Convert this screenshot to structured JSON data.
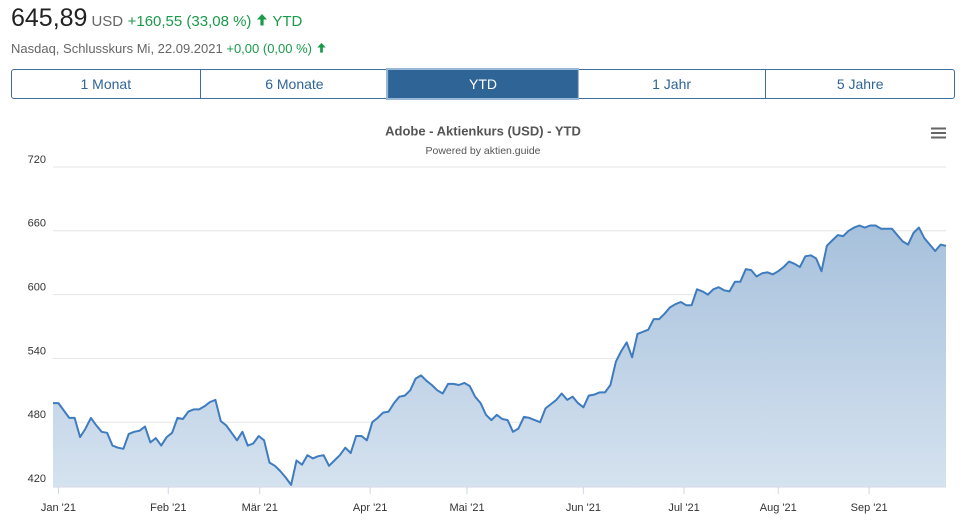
{
  "header": {
    "price": "645,89",
    "currency": "USD",
    "change": "+160,55 (33,08 %)",
    "period": "YTD",
    "exchange_info": "Nasdaq, Schlusskurs Mi, 22.09.2021",
    "day_change": "+0,00 (0,00 %)"
  },
  "tabs": [
    "1 Monat",
    "6 Monate",
    "YTD",
    "1 Jahr",
    "5 Jahre"
  ],
  "active_tab": 2,
  "chart_data": {
    "type": "area",
    "title": "Adobe - Aktienkurs (USD) - YTD",
    "subtitle": "Powered by aktien.guide",
    "color": "#3f7cbf",
    "grid": true,
    "values": [
      498,
      498,
      491,
      484,
      484,
      466,
      474,
      484,
      477,
      471,
      470,
      458,
      456,
      455,
      469,
      471,
      472,
      476,
      461,
      465,
      458,
      466,
      470,
      484,
      483,
      490,
      492,
      492,
      495,
      499,
      501,
      481,
      477,
      470,
      463,
      471,
      458,
      460,
      467,
      463,
      442,
      439,
      434,
      428,
      421,
      444,
      440,
      449,
      446,
      448,
      449,
      439,
      444,
      449,
      456,
      451,
      467,
      467,
      463,
      480,
      484,
      489,
      490,
      498,
      504,
      505,
      510,
      521,
      524,
      519,
      515,
      510,
      507,
      516,
      516,
      515,
      517,
      514,
      504,
      498,
      487,
      482,
      487,
      483,
      482,
      471,
      474,
      485,
      484,
      482,
      480,
      493,
      497,
      501,
      507,
      501,
      504,
      498,
      494,
      505,
      506,
      508,
      508,
      515,
      537,
      547,
      555,
      541,
      563,
      565,
      567,
      577,
      577,
      582,
      588,
      591,
      593,
      590,
      590,
      605,
      603,
      600,
      605,
      607,
      604,
      603,
      612,
      612,
      624,
      623,
      617,
      620,
      621,
      619,
      622,
      626,
      631,
      629,
      626,
      636,
      637,
      634,
      622,
      646,
      651,
      656,
      655,
      660,
      663,
      665,
      663,
      665,
      665,
      662,
      662,
      662,
      656,
      650,
      647,
      658,
      663,
      653,
      647,
      641,
      647,
      645.89
    ],
    "xlim": [
      0,
      165
    ],
    "xticks": [
      {
        "value": 1,
        "label": "Jan '21"
      },
      {
        "value": 21.3,
        "label": "Feb '21"
      },
      {
        "value": 38.2,
        "label": "Mär '21"
      },
      {
        "value": 58.6,
        "label": "Apr '21"
      },
      {
        "value": 76.5,
        "label": "Mai '21"
      },
      {
        "value": 98,
        "label": "Jun '21"
      },
      {
        "value": 116.6,
        "label": "Jul '21"
      },
      {
        "value": 134,
        "label": "Aug '21"
      },
      {
        "value": 150.8,
        "label": "Sep '21"
      }
    ],
    "ylim": [
      420,
      720
    ],
    "yticks": [
      420,
      480,
      540,
      600,
      660,
      720
    ]
  }
}
